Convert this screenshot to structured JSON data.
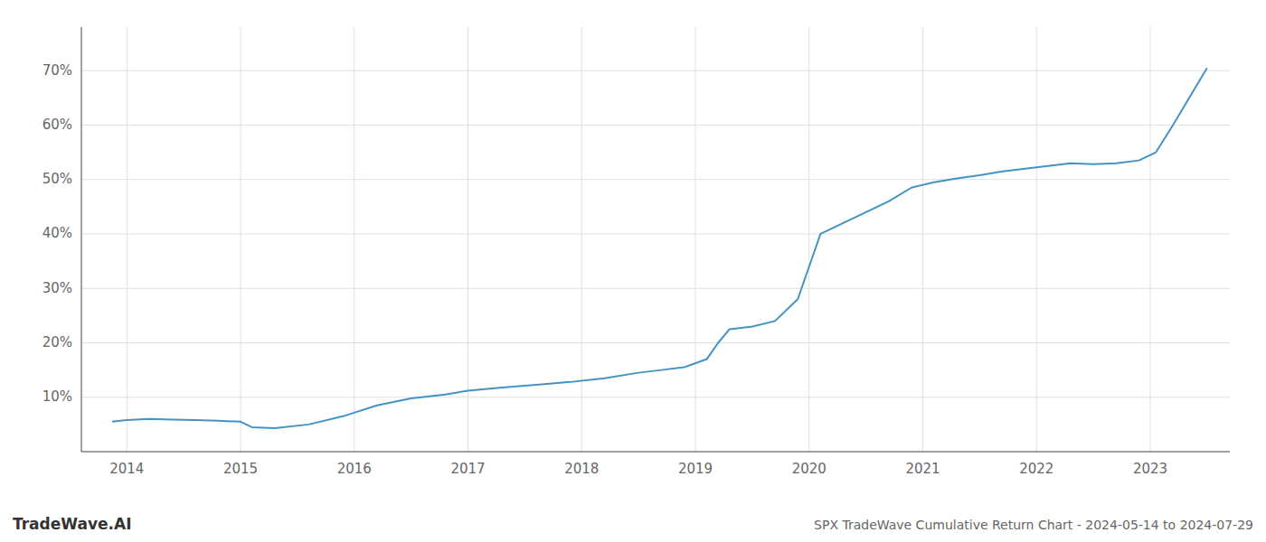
{
  "chart_data": {
    "type": "line",
    "title": "SPX TradeWave Cumulative Return Chart - 2024-05-14 to 2024-07-29",
    "annotations": [
      "TradeWave.AI"
    ],
    "x": [
      2013.87,
      2014.0,
      2014.2,
      2014.4,
      2014.6,
      2014.8,
      2015.0,
      2015.1,
      2015.3,
      2015.6,
      2015.9,
      2016.2,
      2016.5,
      2016.8,
      2017.0,
      2017.3,
      2017.6,
      2017.9,
      2018.2,
      2018.5,
      2018.7,
      2018.9,
      2019.1,
      2019.2,
      2019.3,
      2019.5,
      2019.7,
      2019.9,
      2020.1,
      2020.3,
      2020.5,
      2020.7,
      2020.9,
      2021.1,
      2021.3,
      2021.5,
      2021.7,
      2021.9,
      2022.1,
      2022.3,
      2022.5,
      2022.7,
      2022.9,
      2023.05,
      2023.2,
      2023.4,
      2023.5
    ],
    "values": [
      5.5,
      5.8,
      6.0,
      5.9,
      5.8,
      5.7,
      5.5,
      4.5,
      4.3,
      5.0,
      6.5,
      8.5,
      9.8,
      10.5,
      11.2,
      11.8,
      12.3,
      12.8,
      13.5,
      14.5,
      15.0,
      15.5,
      17.0,
      20.0,
      22.5,
      23.0,
      24.0,
      28.0,
      40.0,
      42.0,
      44.0,
      46.0,
      48.5,
      49.5,
      50.2,
      50.8,
      51.5,
      52.0,
      52.5,
      53.0,
      52.8,
      53.0,
      53.5,
      55.0,
      60.0,
      67.0,
      70.5
    ],
    "color": "#4393c3",
    "xlim": [
      2013.6,
      2023.7
    ],
    "ylim": [
      0,
      78
    ],
    "xticks": [
      2014,
      2015,
      2016,
      2017,
      2018,
      2019,
      2020,
      2021,
      2022,
      2023
    ],
    "yticks": [
      {
        "value": 10,
        "label": "10%"
      },
      {
        "value": 20,
        "label": "20%"
      },
      {
        "value": 30,
        "label": "30%"
      },
      {
        "value": 40,
        "label": "40%"
      },
      {
        "value": 50,
        "label": "50%"
      },
      {
        "value": 60,
        "label": "60%"
      },
      {
        "value": 70,
        "label": "70%"
      }
    ],
    "grid": true
  }
}
